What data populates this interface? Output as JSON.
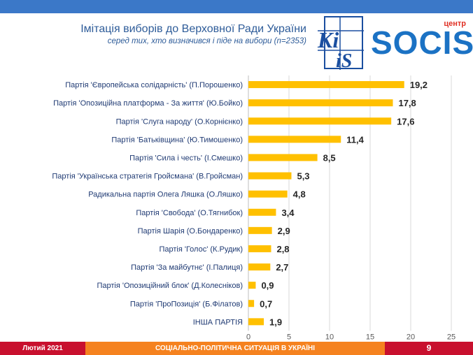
{
  "header": {
    "title": "Імітація виборів до Верховної Ради України",
    "subtitle": "серед тих, хто визначився і піде на вибори (n=2353)"
  },
  "logos": {
    "kiis_top": "Ki",
    "kiis_bottom": "iS",
    "socis_centre": "центр",
    "socis_name": "SOCIS"
  },
  "colors": {
    "bar": "#ffc000",
    "top_bar": "#3b78c8",
    "footer_red": "#c8102e",
    "footer_orange": "#f5821f"
  },
  "chart_data": {
    "type": "bar",
    "orientation": "horizontal",
    "title": "Імітація виборів до Верховної Ради України",
    "categories": [
      "Партія 'Європейська солідарність' (П.Порошенко)",
      "Партія 'Опозиційна платформа - За життя' (Ю.Бойко)",
      "Партія 'Слуга народу' (О.Корнієнко)",
      "Партія 'Батьківщина' (Ю.Тимошенко)",
      "Партія 'Сила і честь' (І.Смешко)",
      "Партія 'Українська стратегія Гройсмана' (В.Гройсман)",
      "Радикальна партія Олега Ляшка (О.Ляшко)",
      "Партія 'Свобода' (О.Тягнибок)",
      "Партія Шарія (О.Бондаренко)",
      "Партія 'Голос' (К.Рудик)",
      "Партія 'За майбутнє' (І.Палиця)",
      "Партія 'Опозиційний блок' (Д.Колесніков)",
      "Партія 'ПроПозиція' (Б.Філатов)",
      "ІНША ПАРТІЯ"
    ],
    "values": [
      19.2,
      17.8,
      17.6,
      11.4,
      8.5,
      5.3,
      4.8,
      3.4,
      2.9,
      2.8,
      2.7,
      0.9,
      0.7,
      1.9
    ],
    "value_labels": [
      "19,2",
      "17,8",
      "17,6",
      "11,4",
      "8,5",
      "5,3",
      "4,8",
      "3,4",
      "2,9",
      "2,8",
      "2,7",
      "0,9",
      "0,7",
      "1,9"
    ],
    "xlim": [
      0,
      25
    ],
    "xticks": [
      "0",
      "5",
      "10",
      "15",
      "20",
      "25"
    ],
    "xlabel": "",
    "ylabel": ""
  },
  "footer": {
    "date": "Лютий 2021",
    "section": "СОЦІАЛЬНО-ПОЛІТИЧНА СИТУАЦІЯ В УКРАЇНІ",
    "page": "9"
  }
}
